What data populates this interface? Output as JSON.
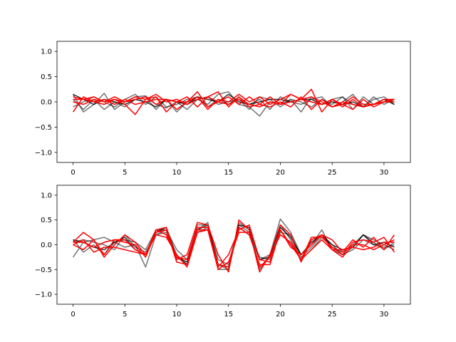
{
  "chart_data": [
    {
      "type": "line",
      "title": "",
      "xlabel": "",
      "ylabel": "",
      "xlim": [
        -1.55,
        32.55
      ],
      "ylim": [
        -1.2,
        1.2
      ],
      "xticks": [
        0,
        5,
        10,
        15,
        20,
        25,
        30
      ],
      "yticks": [
        -1.0,
        -0.5,
        0.0,
        0.5,
        1.0
      ],
      "ytick_labels": [
        "−1.0",
        "−0.5",
        "0.0",
        "0.5",
        "1.0"
      ],
      "grid": false,
      "legend": "none",
      "x": [
        0,
        1,
        2,
        3,
        4,
        5,
        6,
        7,
        8,
        9,
        10,
        11,
        12,
        13,
        14,
        15,
        16,
        17,
        18,
        19,
        20,
        21,
        22,
        23,
        24,
        25,
        26,
        27,
        28,
        29,
        30,
        31
      ],
      "series": [
        {
          "color": "#000000",
          "alpha": 0.55,
          "values": [
            0.15,
            -0.2,
            -0.05,
            0.17,
            -0.15,
            0.0,
            0.1,
            0.12,
            -0.05,
            -0.12,
            0.0,
            -0.15,
            0.05,
            -0.05,
            0.15,
            0.2,
            -0.05,
            -0.1,
            -0.28,
            0.0,
            -0.05,
            0.05,
            -0.2,
            0.1,
            -0.05,
            0.05,
            0.1,
            -0.15,
            0.1,
            -0.05,
            0.05,
            0.0
          ]
        },
        {
          "color": "#000000",
          "alpha": 0.55,
          "values": [
            -0.1,
            0.0,
            0.1,
            0.0,
            -0.1,
            0.05,
            0.15,
            -0.05,
            0.1,
            -0.1,
            -0.05,
            0.05,
            0.1,
            -0.1,
            0.05,
            -0.05,
            0.1,
            -0.05,
            0.05,
            -0.15,
            0.1,
            0.0,
            -0.05,
            0.05,
            0.1,
            -0.1,
            0.0,
            0.15,
            -0.1,
            0.05,
            0.1,
            -0.05
          ]
        },
        {
          "color": "#000000",
          "alpha": 0.55,
          "values": [
            0.05,
            -0.15,
            0.05,
            -0.15,
            0.0,
            -0.1,
            0.05,
            0.1,
            -0.15,
            0.05,
            -0.2,
            0.0,
            0.05,
            0.1,
            -0.05,
            0.0,
            0.05,
            -0.15,
            0.1,
            0.05,
            -0.1,
            0.05,
            0.0,
            -0.1,
            0.05,
            -0.05,
            0.1,
            -0.05,
            -0.1,
            0.1,
            -0.05,
            0.05
          ]
        },
        {
          "color": "#000000",
          "alpha": 0.8,
          "values": [
            0.15,
            0.05,
            -0.05,
            0.05,
            0.0,
            -0.05,
            0.05,
            0.0,
            -0.1,
            0.05,
            0.0,
            -0.05,
            0.1,
            0.05,
            0.0,
            0.15,
            0.0,
            -0.05,
            0.0,
            0.05,
            0.05,
            0.0,
            0.05,
            0.05,
            -0.05,
            0.0,
            -0.05,
            0.0,
            -0.1,
            -0.05,
            0.05,
            -0.05
          ]
        },
        {
          "color": "#ff0000",
          "alpha": 1.0,
          "values": [
            -0.2,
            0.1,
            0.0,
            -0.05,
            0.05,
            -0.05,
            -0.25,
            0.05,
            0.1,
            -0.2,
            0.0,
            0.0,
            0.2,
            -0.1,
            0.0,
            0.1,
            -0.05,
            0.1,
            -0.05,
            0.1,
            -0.05,
            0.15,
            0.05,
            0.25,
            -0.2,
            0.05,
            -0.05,
            -0.15,
            0.05,
            -0.1,
            0.0,
            0.05
          ]
        },
        {
          "color": "#ff0000",
          "alpha": 1.0,
          "values": [
            0.1,
            0.05,
            0.1,
            0.0,
            0.05,
            0.0,
            0.05,
            0.1,
            -0.05,
            0.05,
            -0.15,
            0.0,
            0.1,
            -0.15,
            0.05,
            0.0,
            0.15,
            0.0,
            0.1,
            -0.05,
            0.05,
            0.15,
            0.05,
            0.1,
            0.0,
            -0.1,
            -0.05,
            0.1,
            -0.05,
            -0.05,
            0.0,
            0.0
          ]
        },
        {
          "color": "#ff0000",
          "alpha": 1.0,
          "values": [
            0.0,
            -0.05,
            0.05,
            0.0,
            0.1,
            0.0,
            0.1,
            0.05,
            0.15,
            0.0,
            0.05,
            -0.05,
            0.05,
            0.1,
            0.2,
            -0.1,
            0.1,
            -0.1,
            -0.05,
            -0.1,
            0.0,
            -0.1,
            0.1,
            -0.15,
            0.05,
            -0.1,
            0.0,
            -0.05,
            -0.1,
            -0.05,
            0.0,
            0.05
          ]
        },
        {
          "color": "#ff0000",
          "alpha": 1.0,
          "values": [
            0.05,
            0.05,
            0.0,
            0.05,
            -0.05,
            0.05,
            -0.05,
            0.0,
            0.05,
            0.05,
            0.0,
            0.1,
            -0.1,
            0.1,
            0.0,
            -0.05,
            0.05,
            -0.05,
            -0.1,
            0.0,
            -0.05,
            0.0,
            0.05,
            0.0,
            -0.05,
            0.05,
            -0.1,
            0.05,
            -0.1,
            -0.05,
            0.05,
            0.05
          ]
        }
      ]
    },
    {
      "type": "line",
      "title": "",
      "xlabel": "",
      "ylabel": "",
      "xlim": [
        -1.55,
        32.55
      ],
      "ylim": [
        -1.2,
        1.2
      ],
      "xticks": [
        0,
        5,
        10,
        15,
        20,
        25,
        30
      ],
      "yticks": [
        -1.0,
        -0.5,
        0.0,
        0.5,
        1.0
      ],
      "ytick_labels": [
        "−1.0",
        "−0.5",
        "0.0",
        "0.5",
        "1.0"
      ],
      "grid": false,
      "legend": "none",
      "x": [
        0,
        1,
        2,
        3,
        4,
        5,
        6,
        7,
        8,
        9,
        10,
        11,
        12,
        13,
        14,
        15,
        16,
        17,
        18,
        19,
        20,
        21,
        22,
        23,
        24,
        25,
        26,
        27,
        28,
        29,
        30,
        31
      ],
      "series": [
        {
          "color": "#000000",
          "alpha": 0.55,
          "values": [
            -0.25,
            0.05,
            0.1,
            0.15,
            0.05,
            -0.05,
            0.0,
            -0.45,
            0.2,
            0.25,
            -0.25,
            -0.4,
            0.25,
            0.35,
            -0.4,
            -0.5,
            0.35,
            0.2,
            -0.3,
            -0.2,
            0.52,
            0.25,
            -0.2,
            0.0,
            0.3,
            -0.1,
            -0.2,
            -0.05,
            0.2,
            0.05,
            -0.1,
            0.05
          ]
        },
        {
          "color": "#000000",
          "alpha": 0.55,
          "values": [
            0.1,
            -0.15,
            0.0,
            -0.2,
            0.05,
            0.1,
            0.05,
            -0.1,
            0.3,
            0.3,
            -0.1,
            -0.3,
            0.4,
            0.4,
            -0.3,
            -0.4,
            0.4,
            0.25,
            -0.25,
            -0.3,
            0.25,
            0.2,
            -0.25,
            -0.05,
            0.2,
            -0.05,
            -0.15,
            0.0,
            0.2,
            0.1,
            0.0,
            -0.1
          ]
        },
        {
          "color": "#000000",
          "alpha": 0.55,
          "values": [
            0.05,
            0.1,
            0.05,
            0.0,
            -0.1,
            0.2,
            -0.05,
            -0.15,
            0.2,
            0.3,
            -0.2,
            -0.4,
            0.3,
            0.45,
            -0.5,
            -0.5,
            0.45,
            0.3,
            -0.5,
            -0.2,
            0.4,
            0.1,
            -0.3,
            -0.1,
            0.15,
            0.0,
            -0.2,
            -0.1,
            0.1,
            0.0,
            -0.05,
            0.0
          ]
        },
        {
          "color": "#000000",
          "alpha": 0.8,
          "values": [
            0.1,
            0.05,
            -0.05,
            -0.1,
            0.05,
            0.15,
            -0.1,
            -0.2,
            0.25,
            0.35,
            -0.25,
            -0.35,
            0.3,
            0.4,
            -0.4,
            -0.45,
            0.4,
            0.35,
            -0.3,
            -0.25,
            0.35,
            0.15,
            -0.2,
            0.05,
            0.2,
            0.0,
            -0.1,
            -0.05,
            0.2,
            0.0,
            0.05,
            -0.05
          ]
        },
        {
          "color": "#ff0000",
          "alpha": 1.0,
          "values": [
            0.05,
            0.25,
            0.1,
            -0.2,
            0.1,
            0.1,
            -0.1,
            -0.2,
            0.3,
            0.35,
            -0.3,
            -0.2,
            0.45,
            0.4,
            -0.2,
            -0.55,
            0.5,
            0.3,
            -0.55,
            -0.2,
            0.4,
            0.2,
            -0.35,
            0.1,
            0.2,
            0.1,
            -0.15,
            0.1,
            -0.05,
            0.15,
            -0.1,
            0.2
          ]
        },
        {
          "color": "#ff0000",
          "alpha": 1.0,
          "values": [
            0.0,
            -0.1,
            0.1,
            -0.25,
            0.0,
            0.2,
            0.05,
            -0.2,
            0.3,
            0.2,
            -0.25,
            -0.3,
            0.35,
            0.35,
            -0.45,
            -0.2,
            0.3,
            0.4,
            -0.3,
            -0.35,
            0.3,
            0.0,
            -0.3,
            0.15,
            0.15,
            -0.05,
            -0.2,
            0.05,
            0.1,
            0.05,
            0.15,
            -0.15
          ]
        },
        {
          "color": "#ff0000",
          "alpha": 1.0,
          "values": [
            0.05,
            0.05,
            -0.05,
            0.05,
            0.1,
            0.05,
            0.0,
            -0.25,
            0.25,
            0.3,
            -0.35,
            -0.4,
            0.3,
            0.3,
            -0.4,
            -0.45,
            0.35,
            0.2,
            -0.4,
            -0.4,
            0.3,
            -0.05,
            -0.2,
            0.0,
            0.2,
            -0.1,
            -0.25,
            0.0,
            0.0,
            -0.1,
            0.0,
            0.1
          ]
        },
        {
          "color": "#ff0000",
          "alpha": 1.0,
          "values": [
            0.0,
            0.1,
            -0.15,
            -0.05,
            -0.05,
            -0.1,
            -0.15,
            -0.2,
            0.2,
            0.15,
            -0.2,
            -0.45,
            0.25,
            0.3,
            -0.5,
            -0.35,
            0.25,
            0.25,
            -0.45,
            -0.25,
            0.2,
            0.05,
            -0.3,
            -0.1,
            0.1,
            -0.1,
            -0.1,
            -0.05,
            -0.1,
            -0.05,
            0.05,
            0.05
          ]
        }
      ]
    }
  ]
}
